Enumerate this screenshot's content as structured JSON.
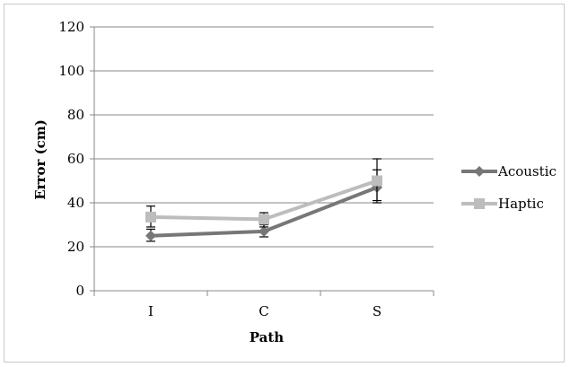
{
  "chart_data": {
    "type": "line",
    "title": "",
    "xlabel": "Path",
    "ylabel": "Error (cm)",
    "categories": [
      "I",
      "C",
      "S"
    ],
    "ylim": [
      0,
      120
    ],
    "yticks": [
      "0",
      "20",
      "40",
      "60",
      "80",
      "100",
      "120"
    ],
    "grid": "horizontal",
    "legend_position": "right",
    "series": [
      {
        "name": "Acoustic",
        "color": "#777777",
        "marker": "diamond",
        "values": [
          25,
          27,
          47
        ],
        "error_low": [
          22.5,
          24.5,
          40
        ],
        "error_high": [
          28,
          30,
          55
        ]
      },
      {
        "name": "Haptic",
        "color": "#bdbdbd",
        "marker": "square",
        "values": [
          33.5,
          32.5,
          50
        ],
        "error_low": [
          29,
          29,
          41
        ],
        "error_high": [
          38.5,
          35.5,
          60
        ]
      }
    ]
  }
}
